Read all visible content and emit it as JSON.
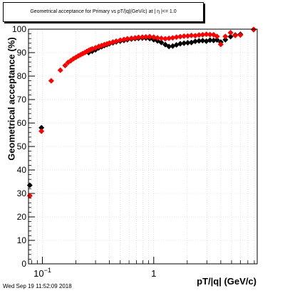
{
  "title": "Geometrical acceptance for Primary vs pT/|q|(GeV/c) at | η |<= 1.0",
  "timestamp": "Wed Sep 19 11:52:09 2018",
  "colors": {
    "series_primary": "#ff0000",
    "series_secondary": "#000000",
    "grid": "#cccccc"
  },
  "chart_data": {
    "type": "scatter",
    "title": "Geometrical acceptance for Primary vs pT/|q|(GeV/c) at | η |<= 1.0",
    "xlabel": "pT/|q| (GeV/c)",
    "ylabel": "Geometrical acceptance (%)",
    "x_scale": "log",
    "xlim": [
      0.075,
      8.5
    ],
    "ylim": [
      0,
      100
    ],
    "x_ticks": [
      {
        "value": 0.1,
        "label": "10",
        "exp": "−1"
      },
      {
        "value": 1,
        "label": "1",
        "exp": ""
      }
    ],
    "y_ticks": [
      0,
      10,
      20,
      30,
      40,
      50,
      60,
      70,
      80,
      90,
      100
    ],
    "grid": true,
    "legend": "none",
    "series": [
      {
        "marker": "diamond",
        "color": "#000000",
        "points": [
          [
            0.077,
            33.5
          ],
          [
            0.098,
            58.0
          ],
          [
            0.26,
            90.0
          ],
          [
            0.28,
            90.6
          ],
          [
            0.3,
            91.2
          ],
          [
            0.32,
            92.0
          ],
          [
            0.34,
            92.5
          ],
          [
            0.36,
            93.0
          ],
          [
            0.38,
            93.4
          ],
          [
            0.4,
            93.8
          ],
          [
            0.43,
            94.2
          ],
          [
            0.46,
            94.6
          ],
          [
            0.5,
            94.9
          ],
          [
            0.54,
            95.2
          ],
          [
            0.58,
            95.5
          ],
          [
            0.63,
            95.8
          ],
          [
            0.68,
            96.0
          ],
          [
            0.73,
            96.1
          ],
          [
            0.79,
            96.2
          ],
          [
            0.85,
            96.2
          ],
          [
            0.92,
            96.0
          ],
          [
            1.0,
            95.5
          ],
          [
            1.08,
            95.0
          ],
          [
            1.17,
            94.3
          ],
          [
            1.27,
            93.4
          ],
          [
            1.37,
            92.6
          ],
          [
            1.48,
            92.8
          ],
          [
            1.6,
            93.3
          ],
          [
            1.73,
            93.8
          ],
          [
            1.87,
            94.0
          ],
          [
            2.02,
            94.2
          ],
          [
            2.18,
            94.3
          ],
          [
            2.36,
            94.8
          ],
          [
            2.55,
            95.0
          ],
          [
            2.75,
            95.1
          ],
          [
            2.97,
            94.9
          ],
          [
            3.2,
            95.3
          ],
          [
            3.45,
            95.2
          ],
          [
            3.7,
            95.4
          ],
          [
            4.0,
            94.5
          ],
          [
            4.4,
            95.5
          ],
          [
            4.9,
            96.8
          ],
          [
            5.4,
            97.5
          ],
          [
            6.0,
            97.8
          ],
          [
            7.9,
            99.8
          ]
        ]
      },
      {
        "marker": "diamond",
        "color": "#ff0000",
        "points": [
          [
            0.077,
            29.0
          ],
          [
            0.098,
            56.5
          ],
          [
            0.12,
            78.0
          ],
          [
            0.145,
            82.5
          ],
          [
            0.16,
            84.5
          ],
          [
            0.17,
            85.8
          ],
          [
            0.18,
            86.6
          ],
          [
            0.19,
            87.4
          ],
          [
            0.2,
            88.0
          ],
          [
            0.21,
            88.6
          ],
          [
            0.22,
            89.1
          ],
          [
            0.23,
            89.6
          ],
          [
            0.24,
            90.0
          ],
          [
            0.25,
            90.5
          ],
          [
            0.26,
            90.9
          ],
          [
            0.27,
            91.3
          ],
          [
            0.28,
            91.6
          ],
          [
            0.3,
            92.1
          ],
          [
            0.32,
            92.6
          ],
          [
            0.34,
            93.0
          ],
          [
            0.36,
            93.4
          ],
          [
            0.38,
            93.7
          ],
          [
            0.4,
            94.1
          ],
          [
            0.43,
            94.5
          ],
          [
            0.46,
            94.9
          ],
          [
            0.5,
            95.3
          ],
          [
            0.54,
            95.6
          ],
          [
            0.58,
            95.9
          ],
          [
            0.63,
            96.1
          ],
          [
            0.68,
            96.3
          ],
          [
            0.73,
            96.5
          ],
          [
            0.79,
            96.6
          ],
          [
            0.85,
            96.7
          ],
          [
            0.92,
            96.8
          ],
          [
            1.0,
            96.6
          ],
          [
            1.08,
            96.3
          ],
          [
            1.17,
            96.1
          ],
          [
            1.27,
            95.9
          ],
          [
            1.37,
            96.1
          ],
          [
            1.48,
            96.3
          ],
          [
            1.6,
            96.6
          ],
          [
            1.73,
            96.8
          ],
          [
            1.87,
            97.0
          ],
          [
            2.02,
            97.1
          ],
          [
            2.18,
            97.3
          ],
          [
            2.36,
            97.2
          ],
          [
            2.55,
            97.5
          ],
          [
            2.75,
            97.6
          ],
          [
            2.97,
            97.8
          ],
          [
            3.2,
            97.7
          ],
          [
            3.45,
            97.6
          ],
          [
            3.7,
            96.9
          ],
          [
            4.0,
            93.5
          ],
          [
            4.4,
            96.9
          ],
          [
            4.9,
            98.5
          ],
          [
            5.4,
            97.3
          ],
          [
            6.0,
            97.5
          ],
          [
            7.9,
            99.9
          ]
        ]
      }
    ]
  }
}
